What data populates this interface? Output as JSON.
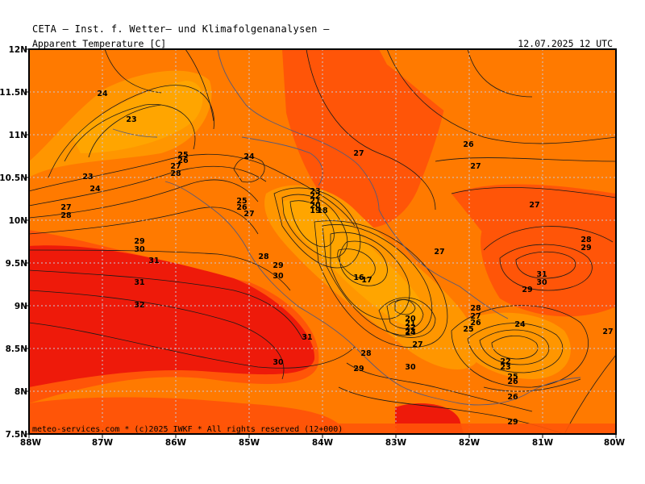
{
  "header": {
    "title": "CETA — Inst. f. Wetter— und Klimafolgenanalysen —",
    "variable": "Apparent_Temperature_[C]",
    "valid_time": "12.07.2025  12 UTC"
  },
  "credit": "meteo-services.com * (c)2025 IWKF * All rights reserved (12+000)",
  "axes": {
    "lat_labels": [
      "7.5N",
      "8N",
      "8.5N",
      "9N",
      "9.5N",
      "10N",
      "10.5N",
      "11N",
      "11.5N",
      "12N"
    ],
    "lon_labels": [
      "88W",
      "87W",
      "86W",
      "85W",
      "84W",
      "83W",
      "82W",
      "81W",
      "80W"
    ]
  },
  "colors": {
    "hot": "#ee1a0a",
    "warm_red": "#ff3a08",
    "orange_red": "#ff5508",
    "orange": "#ff7a00",
    "amber": "#ff9600",
    "light_amber": "#ffa500"
  },
  "contour_labels": [
    {
      "t": "24"
    },
    {
      "t": "23"
    },
    {
      "t": "25"
    },
    {
      "t": "26"
    },
    {
      "t": "27"
    },
    {
      "t": "28"
    },
    {
      "t": "23"
    },
    {
      "t": "24"
    },
    {
      "t": "24"
    },
    {
      "t": "27"
    },
    {
      "t": "28"
    },
    {
      "t": "25"
    },
    {
      "t": "26"
    },
    {
      "t": "27"
    },
    {
      "t": "29"
    },
    {
      "t": "30"
    },
    {
      "t": "31"
    },
    {
      "t": "31"
    },
    {
      "t": "32"
    },
    {
      "t": "28"
    },
    {
      "t": "29"
    },
    {
      "t": "30"
    },
    {
      "t": "31"
    },
    {
      "t": "30"
    },
    {
      "t": "23"
    },
    {
      "t": "22"
    },
    {
      "t": "21"
    },
    {
      "t": "20"
    },
    {
      "t": "19"
    },
    {
      "t": "18"
    },
    {
      "t": "16"
    },
    {
      "t": "17"
    },
    {
      "t": "27"
    },
    {
      "t": "26"
    },
    {
      "t": "27"
    },
    {
      "t": "27"
    },
    {
      "t": "27"
    },
    {
      "t": "28"
    },
    {
      "t": "29"
    },
    {
      "t": "31"
    },
    {
      "t": "30"
    },
    {
      "t": "29"
    },
    {
      "t": "28"
    },
    {
      "t": "27"
    },
    {
      "t": "26"
    },
    {
      "t": "25"
    },
    {
      "t": "24"
    },
    {
      "t": "20"
    },
    {
      "t": "21"
    },
    {
      "t": "22"
    },
    {
      "t": "23"
    },
    {
      "t": "24"
    },
    {
      "t": "27"
    },
    {
      "t": "28"
    },
    {
      "t": "29"
    },
    {
      "t": "30"
    },
    {
      "t": "22"
    },
    {
      "t": "23"
    },
    {
      "t": "25"
    },
    {
      "t": "26"
    },
    {
      "t": "26"
    },
    {
      "t": "29"
    },
    {
      "t": "27"
    }
  ]
}
